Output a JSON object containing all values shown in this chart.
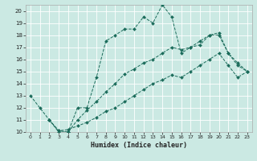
{
  "bg_color": "#cbe9e3",
  "grid_color": "#ffffff",
  "line_color": "#1a6b5a",
  "marker": "D",
  "marker_size": 2.0,
  "xlabel": "Humidex (Indice chaleur)",
  "xlim": [
    -0.5,
    23.5
  ],
  "ylim": [
    10,
    20.5
  ],
  "yticks": [
    10,
    11,
    12,
    13,
    14,
    15,
    16,
    17,
    18,
    19,
    20
  ],
  "xticks": [
    0,
    1,
    2,
    3,
    4,
    5,
    6,
    7,
    8,
    9,
    10,
    11,
    12,
    13,
    14,
    15,
    16,
    17,
    18,
    19,
    20,
    21,
    22,
    23
  ],
  "series": [
    {
      "x": [
        0,
        1,
        2,
        3,
        4,
        5,
        6,
        7,
        8,
        9,
        10,
        11,
        12,
        13,
        14,
        15,
        16,
        17,
        18,
        19,
        20,
        21,
        22,
        23
      ],
      "y": [
        13,
        12,
        11,
        10,
        10,
        12,
        12,
        14.5,
        17.5,
        18,
        18.5,
        18.5,
        19.5,
        19,
        20.5,
        19.5,
        16.5,
        17,
        17.5,
        18,
        18,
        16.5,
        15.5,
        15
      ]
    },
    {
      "x": [
        2,
        3,
        4,
        5,
        6,
        7,
        8,
        9,
        10,
        11,
        12,
        13,
        14,
        15,
        16,
        17,
        18,
        19,
        20,
        21,
        22,
        23
      ],
      "y": [
        11,
        10.1,
        10,
        11,
        11.8,
        12.5,
        13.3,
        14,
        14.8,
        15.2,
        15.7,
        16,
        16.5,
        17,
        16.8,
        17,
        17.2,
        18,
        18.2,
        16.5,
        15.7,
        15
      ]
    },
    {
      "x": [
        2,
        3,
        4,
        5,
        6,
        7,
        8,
        9,
        10,
        11,
        12,
        13,
        14,
        15,
        16,
        17,
        18,
        19,
        20,
        21,
        22,
        23
      ],
      "y": [
        11,
        10.1,
        10.2,
        10.5,
        10.8,
        11.2,
        11.7,
        12,
        12.5,
        13,
        13.5,
        14,
        14.3,
        14.7,
        14.5,
        15,
        15.5,
        16,
        16.5,
        15.5,
        14.5,
        15
      ]
    }
  ]
}
